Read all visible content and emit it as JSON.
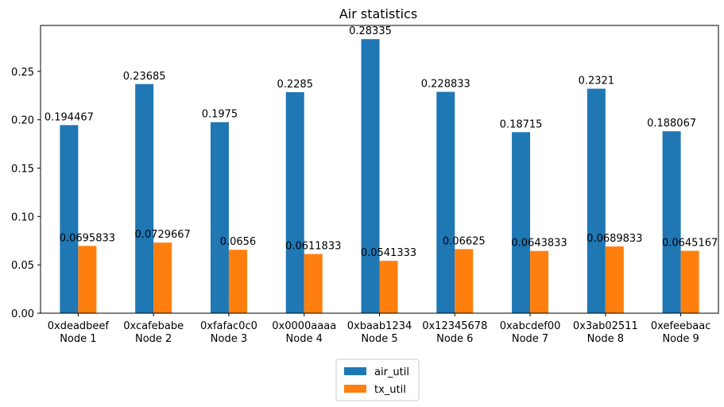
{
  "chart_data": {
    "type": "bar",
    "title": "Air statistics",
    "xlabel": "",
    "ylabel": "",
    "categories": [
      [
        "0xdeadbeef",
        "Node 1"
      ],
      [
        "0xcafebabe",
        "Node 2"
      ],
      [
        "0xfafac0c0",
        "Node 3"
      ],
      [
        "0x0000aaaa",
        "Node 4"
      ],
      [
        "0xbaab1234",
        "Node 5"
      ],
      [
        "0x12345678",
        "Node 6"
      ],
      [
        "0xabcdef00",
        "Node 7"
      ],
      [
        "0x3ab02511",
        "Node 8"
      ],
      [
        "0xefeebaac",
        "Node 9"
      ]
    ],
    "series": [
      {
        "name": "air_util",
        "color": "#1f77b4",
        "values": [
          0.194467,
          0.23685,
          0.1975,
          0.2285,
          0.28335,
          0.228833,
          0.18715,
          0.2321,
          0.188067
        ],
        "labels": [
          "0.194467",
          "0.23685",
          "0.1975",
          "0.2285",
          "0.28335",
          "0.228833",
          "0.18715",
          "0.2321",
          "0.188067"
        ]
      },
      {
        "name": "tx_util",
        "color": "#ff7f0e",
        "values": [
          0.0695833,
          0.0729667,
          0.0656,
          0.0611833,
          0.0541333,
          0.06625,
          0.0643833,
          0.0689833,
          0.0645167
        ],
        "labels": [
          "0.0695833",
          "0.0729667",
          "0.0656",
          "0.0611833",
          "0.0541333",
          "0.06625",
          "0.0643833",
          "0.0689833",
          "0.0645167"
        ]
      }
    ],
    "ylim": [
      0,
      0.2975
    ],
    "yticks": [
      0.0,
      0.05,
      0.1,
      0.15,
      0.2,
      0.25
    ],
    "ytick_labels": [
      "0.00",
      "0.05",
      "0.10",
      "0.15",
      "0.20",
      "0.25"
    ],
    "grid": false,
    "legend_position": "bottom-center"
  }
}
